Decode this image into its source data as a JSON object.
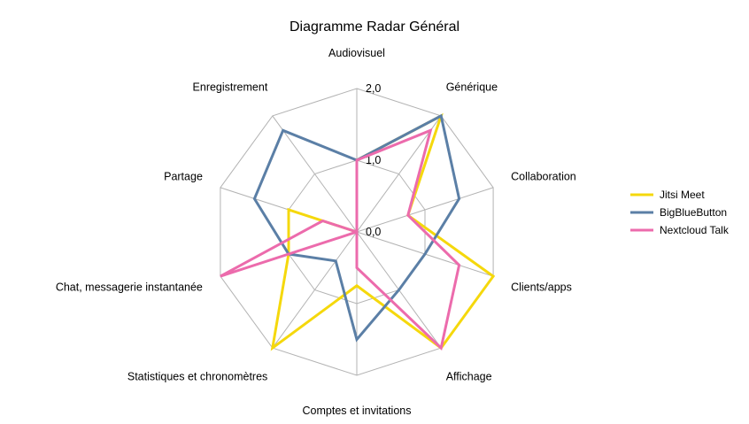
{
  "chart_data": {
    "type": "radar",
    "title": "Diagramme Radar Général",
    "axes": [
      "Audiovisuel",
      "Générique",
      "Collaboration",
      "Clients/apps",
      "Affichage",
      "Comptes et invitations",
      "Statistiques et chronomètres",
      "Chat, messagerie instantanée",
      "Partage",
      "Enregistrement"
    ],
    "rlim": [
      0,
      2
    ],
    "ticks": [
      "0,0",
      "1,0",
      "2,0"
    ],
    "tick_values": [
      0,
      1,
      2
    ],
    "grid": true,
    "legend_position": "right",
    "series": [
      {
        "name": "Jitsi Meet",
        "color": "#f5d80c",
        "values": [
          1.0,
          2.0,
          0.75,
          2.0,
          2.0,
          0.75,
          2.0,
          1.0,
          1.0,
          0.0
        ]
      },
      {
        "name": "BigBlueButton",
        "color": "#5b7fa6",
        "values": [
          1.0,
          2.0,
          1.5,
          1.0,
          1.0,
          1.5,
          0.5,
          1.0,
          1.5,
          1.75
        ]
      },
      {
        "name": "Nextcloud Talk",
        "color": "#ec6bac",
        "values": [
          1.0,
          1.75,
          0.75,
          1.5,
          2.0,
          0.5,
          0.0,
          2.0,
          0.5,
          0.0
        ]
      }
    ]
  }
}
